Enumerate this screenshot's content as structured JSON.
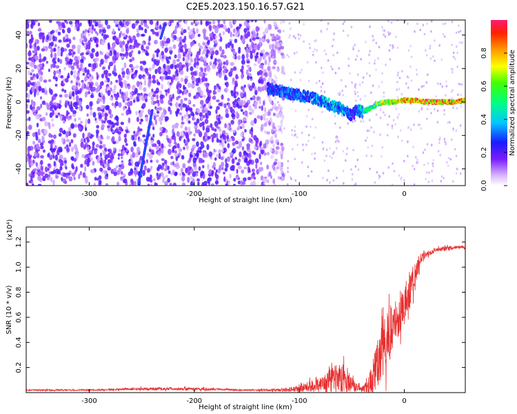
{
  "title": "C2E5.2023.150.16.57.G21",
  "colorbar": {
    "label": "Normalized spectral amplitude",
    "ticks": [
      0.0,
      0.2,
      0.4,
      0.6,
      0.8
    ],
    "tick_labels": [
      "0.0",
      "0.2",
      "0.4",
      "0.6",
      "0.8"
    ],
    "range": [
      0,
      1
    ]
  },
  "chart_data": [
    {
      "type": "heatmap",
      "name": "spectrogram",
      "xlabel": "Height of straight line (km)",
      "ylabel": "Frequency (Hz)",
      "xlim": [
        -360,
        58
      ],
      "ylim": [
        -50,
        49
      ],
      "xticks": [
        -300,
        -200,
        -100,
        0
      ],
      "xtick_labels": [
        "-300",
        "-200",
        "-100",
        "0"
      ],
      "yticks": [
        -40,
        -20,
        0,
        20,
        40
      ],
      "ytick_labels": [
        "-40",
        "-20",
        "0",
        "20",
        "40"
      ],
      "noise_region_x": [
        -360,
        -125
      ],
      "signal_track": {
        "x": [
          -130,
          -115,
          -100,
          -85,
          -70,
          -60,
          -50,
          -45,
          -40,
          -30,
          -20,
          -10,
          0,
          10,
          20,
          30,
          40,
          50,
          58
        ],
        "y": [
          8,
          6,
          4,
          2,
          -2,
          -4,
          -8,
          -5,
          -6,
          -3,
          0,
          0,
          1,
          1,
          0,
          0,
          0,
          0,
          1
        ],
        "amp": [
          0.3,
          0.35,
          0.35,
          0.4,
          0.45,
          0.45,
          0.3,
          0.35,
          0.55,
          0.6,
          0.8,
          0.85,
          0.9,
          0.95,
          1.0,
          1.0,
          1.0,
          1.0,
          0.8
        ]
      },
      "streaks": [
        {
          "x": [
            -253,
            -240
          ],
          "y": [
            -49,
            -5
          ]
        },
        {
          "x": [
            -232,
            -228
          ],
          "y": [
            38,
            46
          ]
        }
      ]
    },
    {
      "type": "line",
      "name": "snr",
      "xlabel": "Height of straight line (km)",
      "ylabel": "SNR (10 * v/v)",
      "y_multiplier": "(x10⁴)",
      "xlim": [
        -360,
        58
      ],
      "ylim": [
        0,
        1.32
      ],
      "xticks": [
        -300,
        -200,
        -100,
        0
      ],
      "xtick_labels": [
        "-300",
        "-200",
        "-100",
        "0"
      ],
      "yticks": [
        0.2,
        0.4,
        0.6,
        0.8,
        1.0,
        1.2
      ],
      "ytick_labels": [
        "0.2",
        "0.4",
        "0.6",
        "0.8",
        "1.0",
        "1.2"
      ],
      "color": "#e83030",
      "envelope": {
        "x": [
          -360,
          -300,
          -250,
          -200,
          -150,
          -120,
          -100,
          -90,
          -80,
          -70,
          -60,
          -50,
          -40,
          -35,
          -30,
          -25,
          -20,
          -15,
          -10,
          -5,
          0,
          5,
          10,
          15,
          20,
          30,
          40,
          50,
          58
        ],
        "base": [
          0.02,
          0.02,
          0.03,
          0.03,
          0.02,
          0.02,
          0.03,
          0.05,
          0.08,
          0.1,
          0.12,
          0.07,
          0.03,
          0.05,
          0.12,
          0.25,
          0.35,
          0.45,
          0.55,
          0.6,
          0.7,
          0.8,
          0.95,
          1.05,
          1.1,
          1.14,
          1.15,
          1.16,
          1.16
        ],
        "amp": [
          0.01,
          0.01,
          0.02,
          0.02,
          0.01,
          0.02,
          0.05,
          0.08,
          0.12,
          0.18,
          0.25,
          0.1,
          0.04,
          0.1,
          0.25,
          0.35,
          0.4,
          0.4,
          0.35,
          0.3,
          0.3,
          0.25,
          0.2,
          0.1,
          0.05,
          0.03,
          0.03,
          0.02,
          0.02
        ]
      }
    }
  ]
}
